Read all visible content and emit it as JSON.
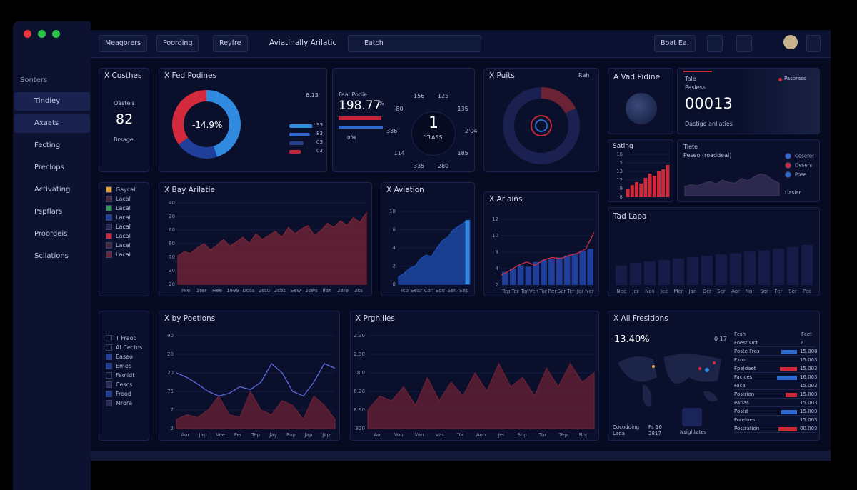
{
  "topbar": {
    "tabs": [
      "Meagorers",
      "Poording",
      "Reyfre"
    ],
    "title": "Aviatinally Arilatic",
    "search": "Eatch",
    "button": "Boat Ea."
  },
  "sidebar": {
    "heading": "Sonters",
    "items": [
      "Tindiey",
      "Axaats",
      "Fecting",
      "Preclops",
      "Activating",
      "Pspflars",
      "Proordeis",
      "Scllations"
    ]
  },
  "cards": {
    "costhes": {
      "title": "X Costhes",
      "label": "Oastels",
      "value": "82",
      "sub": "Brsage"
    },
    "fed": {
      "title": "X Fed Podines",
      "center": "-14.9%",
      "corner": "6.13",
      "legend": [
        "93",
        "83",
        "03",
        "03"
      ]
    },
    "gauge": {
      "label": "Faal Podie",
      "value": "198.77",
      "unit": "%",
      "center": "1",
      "sub": "Y1ASS",
      "dial": [
        "125",
        "135",
        "2'04",
        "185",
        "280",
        "335",
        "114",
        "336",
        "-80",
        "156"
      ],
      "key": "0fH"
    },
    "puits": {
      "title": "X Puits",
      "corner": "Rah"
    },
    "vad": {
      "title": "A Vad Pidine"
    },
    "tale": {
      "label": "Tale",
      "sub": "Pasiess",
      "value": "00013",
      "foot": "Dastige anliaties",
      "note": "Pasorass"
    },
    "sating": {
      "title": "Sating"
    },
    "tlete": {
      "title": "Tlete",
      "sub": "Peseo (roaddeal)",
      "legend": [
        "Coserer",
        "Desers",
        "Pose"
      ],
      "foot": "Daslar"
    },
    "legend1": {
      "items": [
        "Gaycal",
        "Lacal",
        "Lacal",
        "Lacal",
        "Lacal",
        "Lacal",
        "Lacal",
        "Lacal"
      ]
    },
    "bay": {
      "title": "X Bay Arilatie"
    },
    "aviation": {
      "title": "X Aviation"
    },
    "arlains": {
      "title": "X Arlains"
    },
    "tad": {
      "title": "Tad Lapa"
    },
    "legend2": {
      "items": [
        "T Fraod",
        "Al Cectos",
        "Easeo",
        "Emeo",
        "Fsolidt",
        "Cescs",
        "Frood",
        "Mrora"
      ]
    },
    "poetions": {
      "title": "X by Poetions"
    },
    "prghilies": {
      "title": "X Prghilies"
    },
    "fresitions": {
      "title": "X All Fresitions",
      "value": "13.40%",
      "corner": "0 17",
      "foot": [
        "Cocodding",
        "Lada",
        "Fs 16",
        "2817",
        "Nsightates"
      ],
      "headers": [
        "Fcsh",
        "Fcet"
      ],
      "rows": [
        [
          "Foest Oct",
          "2"
        ],
        [
          "Poste Fras",
          "15.008"
        ],
        [
          "Fxro",
          "15.003"
        ],
        [
          "Fpeldaet",
          "15.003"
        ],
        [
          "Faclces",
          "16.003"
        ],
        [
          "Faca",
          "15.003"
        ],
        [
          "Postrion",
          "15.003"
        ],
        [
          "Patias",
          "15.003"
        ],
        [
          "Postd",
          "15.003"
        ],
        [
          "Forelues",
          "15.003"
        ],
        [
          "Postration",
          "00.003"
        ]
      ]
    }
  },
  "charts": {
    "donut": {
      "type": "pie",
      "values": [
        45,
        20,
        35
      ],
      "colors": [
        "#2f8ae0",
        "#1f3f9a",
        "#d32a3e"
      ]
    },
    "fedbars": {
      "type": "hbar",
      "values": [
        90,
        80,
        55,
        45
      ],
      "colors": [
        "#2f8ae0",
        "#2f6ad0",
        "#2a3f8a",
        "#c0283a"
      ],
      "xlim": [
        0,
        100
      ]
    },
    "bay": {
      "type": "area",
      "ylim": [
        0,
        100
      ],
      "ylabels": [
        "40",
        "20",
        "80",
        "60",
        "70",
        "30",
        "20"
      ],
      "xlabels": [
        "Iwe",
        "1ter",
        "Hee",
        "1999",
        "Dcas",
        "2ssu",
        "2sbs",
        "Sew",
        "2sws",
        "Ifan",
        "2ere",
        "2ss"
      ],
      "series": [
        {
          "kind": "area",
          "color": "#7a2636",
          "values": [
            35,
            40,
            38,
            45,
            50,
            42,
            48,
            55,
            47,
            52,
            58,
            50,
            62,
            55,
            60,
            65,
            58,
            70,
            62,
            68,
            72,
            60,
            66,
            75,
            70,
            78,
            72,
            82,
            76,
            88
          ]
        }
      ]
    },
    "aviation": {
      "type": "area",
      "ylim": [
        0,
        100
      ],
      "ylabels": [
        "10",
        "6",
        "4",
        "2",
        "0"
      ],
      "xlabels": [
        "Tco",
        "Sear",
        "Cor",
        "Soo",
        "Sen",
        "Sep"
      ],
      "series": [
        {
          "kind": "area",
          "color": "#1f4fb0",
          "values": [
            10,
            15,
            22,
            25,
            35,
            40,
            38,
            50,
            60,
            65,
            75,
            80,
            85,
            88
          ]
        },
        {
          "kind": "bar",
          "color": "#2f8ae0",
          "values": [
            null,
            null,
            null,
            null,
            null,
            null,
            null,
            null,
            null,
            null,
            null,
            null,
            null,
            88
          ]
        }
      ]
    },
    "arlains": {
      "type": "bar",
      "ylim": [
        0,
        100
      ],
      "ylabels": [
        "12",
        "10",
        "8",
        "4",
        "2"
      ],
      "xlabels": [
        "Tep",
        "Ter",
        "Tor",
        "Ven",
        "Tor",
        "Rer",
        "Ser",
        "Ter",
        "Jer",
        "Ner"
      ],
      "series": [
        {
          "kind": "bar",
          "color": "#1f3f9a",
          "values": [
            20,
            25,
            30,
            28,
            35,
            38,
            40,
            42,
            45,
            48,
            52,
            55
          ]
        },
        {
          "kind": "line",
          "color": "#d03040",
          "values": [
            15,
            22,
            30,
            35,
            30,
            38,
            42,
            40,
            45,
            48,
            55,
            80
          ]
        }
      ]
    },
    "tad": {
      "type": "bar",
      "ylim": [
        0,
        100
      ],
      "xlabels": [
        "Nec",
        "Jer",
        "Nov",
        "Jec",
        "Mer",
        "Jan",
        "Ocr",
        "Ser",
        "Aor",
        "Nor",
        "Sor",
        "Fer",
        "Ser",
        "Pec"
      ],
      "series": [
        {
          "kind": "bar",
          "color": "#161c48",
          "values": [
            35,
            40,
            42,
            45,
            48,
            50,
            52,
            55,
            57,
            60,
            62,
            65,
            68,
            72
          ]
        }
      ]
    },
    "sating": {
      "type": "bar",
      "ylim": [
        0,
        100
      ],
      "ylabels": [
        "16",
        "15",
        "13",
        "12",
        "9",
        "8"
      ],
      "series": [
        {
          "kind": "bar",
          "color": "#d02a3a",
          "values": [
            20,
            28,
            35,
            32,
            45,
            55,
            50,
            60,
            65,
            75
          ]
        }
      ]
    },
    "peseo": {
      "type": "area",
      "ylim": [
        0,
        100
      ],
      "series": [
        {
          "kind": "area",
          "color": "#3a3258",
          "values": [
            30,
            35,
            32,
            40,
            45,
            38,
            50,
            42,
            40,
            55,
            48,
            60,
            70,
            65,
            50,
            40
          ]
        }
      ]
    },
    "poetions": {
      "type": "line",
      "ylim": [
        0,
        100
      ],
      "ylabels": [
        "90",
        "20",
        "20",
        "75",
        "7",
        "2"
      ],
      "xlabels": [
        "Aor",
        "Jap",
        "Vee",
        "Fer",
        "Tep",
        "Jay",
        "Pap",
        "Jap",
        "Jap"
      ],
      "series": [
        {
          "kind": "area",
          "color": "#6a2234",
          "values": [
            10,
            15,
            12,
            20,
            35,
            15,
            12,
            40,
            20,
            15,
            30,
            25,
            10,
            35,
            25,
            10
          ]
        },
        {
          "kind": "line",
          "color": "#5a6ad8",
          "values": [
            60,
            55,
            48,
            40,
            35,
            38,
            45,
            42,
            50,
            70,
            60,
            40,
            35,
            50,
            70,
            65
          ]
        }
      ]
    },
    "prghilies": {
      "type": "area",
      "ylim": [
        0,
        100
      ],
      "ylabels": [
        "2.30",
        "2.30",
        "8.0",
        "8.20",
        "8.90",
        "320"
      ],
      "xlabels": [
        "Aor",
        "Voo",
        "Van",
        "Vas",
        "Tor",
        "Aoo",
        "Jer",
        "Sop",
        "Tor",
        "Tep",
        "Bop"
      ],
      "series": [
        {
          "kind": "area",
          "color": "#6a2234",
          "values": [
            20,
            35,
            30,
            45,
            25,
            55,
            30,
            50,
            35,
            60,
            40,
            70,
            45,
            55,
            35,
            65,
            45,
            70,
            50,
            60
          ]
        }
      ]
    },
    "tablebars": {
      "type": "hbar",
      "xlim": [
        0,
        100
      ],
      "values": [
        0,
        55,
        0,
        60,
        70,
        0,
        40,
        0,
        55,
        0,
        65
      ],
      "colors": [
        "#2f6ad0",
        "#2f6ad0",
        "#2f6ad0",
        "#d02a3a",
        "#2f6ad0",
        "#2f6ad0",
        "#d02a3a",
        "#2f6ad0",
        "#2f6ad0",
        "#2f6ad0",
        "#d02a3a"
      ]
    }
  }
}
